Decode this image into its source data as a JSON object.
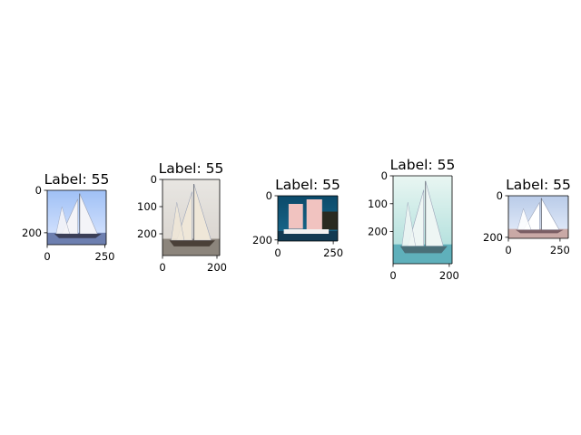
{
  "chart_data": {
    "type": "image-grid",
    "panels": [
      {
        "title": "Label: 55",
        "image_width": 256,
        "image_height": 256,
        "xticks": [
          0,
          250
        ],
        "yticks": [
          0,
          200
        ],
        "icon": "sailboat-photo-icon",
        "colors": {
          "sky_top": "#9fc0f5",
          "sky_bottom": "#dbe7ff",
          "water": "#6d7fb0",
          "hull": "#3b3f57",
          "sail": "#f4f4f8"
        }
      },
      {
        "title": "Label: 55",
        "image_width": 210,
        "image_height": 280,
        "xticks": [
          0,
          200
        ],
        "yticks": [
          0,
          100,
          200
        ],
        "icon": "sailboat-photo-icon",
        "colors": {
          "sky_top": "#e8e6e2",
          "sky_bottom": "#d7d2cc",
          "water": "#8c857c",
          "hull": "#4a4038",
          "sail": "#efe7d8"
        }
      },
      {
        "title": "Label: 55",
        "image_width": 270,
        "image_height": 205,
        "xticks": [
          0,
          250
        ],
        "yticks": [
          0,
          200
        ],
        "icon": "junk-ship-photo-icon",
        "colors": {
          "sky_top": "#0c4a6a",
          "sky_bottom": "#1a6b8f",
          "water": "#123a52",
          "hull": "#f2f2f2",
          "sail": "#f1c3c0"
        }
      },
      {
        "title": "Label: 55",
        "image_width": 210,
        "image_height": 315,
        "xticks": [
          0,
          200
        ],
        "yticks": [
          0,
          100,
          200
        ],
        "icon": "sailboat-photo-icon",
        "colors": {
          "sky_top": "#e9f6f2",
          "sky_bottom": "#a8dcd9",
          "water": "#5fb0bb",
          "hull": "#4a6f78",
          "sail": "#eef6f4"
        }
      },
      {
        "title": "Label: 55",
        "image_width": 290,
        "image_height": 205,
        "xticks": [
          0,
          250
        ],
        "yticks": [
          0,
          200
        ],
        "icon": "sailboat-photo-icon",
        "colors": {
          "sky_top": "#b9cbe8",
          "sky_bottom": "#e7eefb",
          "water": "#c9a9a6",
          "hull": "#7a5e64",
          "sail": "#ffffff"
        }
      }
    ]
  }
}
